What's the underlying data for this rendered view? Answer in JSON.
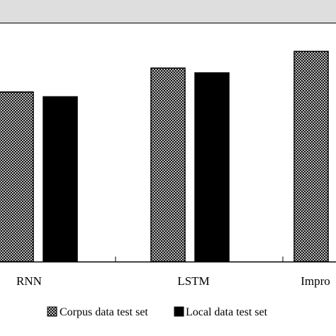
{
  "chart_data": {
    "type": "bar",
    "categories": [
      "RNN",
      "LSTM",
      "Impro"
    ],
    "series": [
      {
        "name": "Corpus data test set",
        "values": [
          0.71,
          0.81,
          0.88
        ]
      },
      {
        "name": "Local data test set",
        "values": [
          0.69,
          0.79,
          null
        ]
      }
    ],
    "ylim": [
      0,
      1
    ],
    "grid": false,
    "legend_position": "bottom",
    "colors": {
      "corpus_fill": "#7a7a7a",
      "local_fill": "#000000",
      "border": "#000000",
      "outer_background": "#dedede"
    }
  }
}
